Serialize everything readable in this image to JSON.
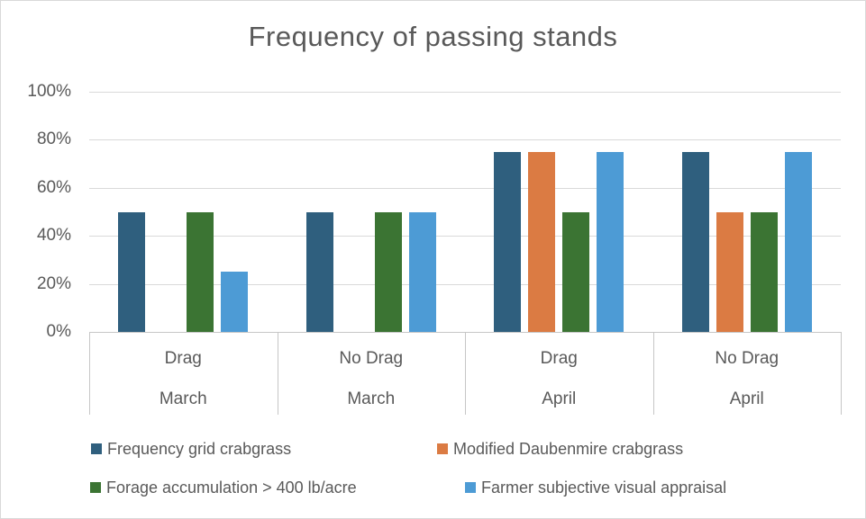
{
  "chart_data": {
    "type": "bar",
    "title": "Frequency of passing stands",
    "categories": [
      {
        "label": "Drag",
        "group": "March"
      },
      {
        "label": "No Drag",
        "group": "March"
      },
      {
        "label": "Drag",
        "group": "April"
      },
      {
        "label": "No Drag",
        "group": "April"
      }
    ],
    "series": [
      {
        "name": "Frequency grid crabgrass",
        "color": "#2F5F7E",
        "values": [
          50,
          50,
          75,
          75
        ]
      },
      {
        "name": "Modified Daubenmire crabgrass",
        "color": "#DB7B43",
        "values": [
          0,
          0,
          75,
          50
        ]
      },
      {
        "name": "Forage accumulation > 400 lb/acre",
        "color": "#3B7433",
        "values": [
          50,
          50,
          50,
          50
        ]
      },
      {
        "name": "Farmer subjective visual appraisal",
        "color": "#4D9BD5",
        "values": [
          25,
          50,
          75,
          75
        ]
      }
    ],
    "y_axis": {
      "tick_labels": [
        "0%",
        "20%",
        "40%",
        "60%",
        "80%",
        "100%"
      ],
      "tick_values": [
        0,
        20,
        40,
        60,
        80,
        100
      ],
      "min": 0,
      "max": 100,
      "grid": true
    },
    "ylim": [
      0,
      100
    ],
    "legend_position": "bottom",
    "colors": {
      "text": "#595959",
      "gridline": "#D9D9D9",
      "axis_line": "#C6C6C6",
      "background": "#FFFFFF",
      "border": "#D9D9D9"
    }
  }
}
